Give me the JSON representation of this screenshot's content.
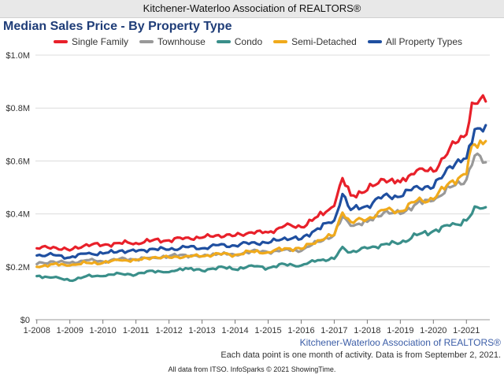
{
  "header": {
    "org_title": "Kitchener-Waterloo Association of REALTORS®"
  },
  "footer": {
    "source_label": "Kitchener-Waterloo Association of REALTORS®",
    "note": "Each data point is one month of activity. Data is from September 2, 2021.",
    "credits": "All data from ITSO. InfoSparks © 2021 ShowingTime."
  },
  "chart_data": {
    "type": "line",
    "title": "Median Sales Price - By Property Type",
    "xlabel": "",
    "ylabel": "",
    "ylim": [
      0,
      1000000
    ],
    "yticks": [
      0,
      200000,
      400000,
      600000,
      800000,
      1000000
    ],
    "ytick_labels": [
      "$0",
      "$0.2M",
      "$0.4M",
      "$0.6M",
      "$0.8M",
      "$1.0M"
    ],
    "xlim": [
      "2008-01",
      "2021-08"
    ],
    "xtick_labels": [
      "1-2008",
      "1-2009",
      "1-2010",
      "1-2011",
      "1-2012",
      "1-2013",
      "1-2014",
      "1-2015",
      "1-2016",
      "1-2017",
      "1-2018",
      "1-2019",
      "1-2020",
      "1-2021"
    ],
    "grid": true,
    "legend_position": "top",
    "series": [
      {
        "name": "Single Family",
        "color": "#e8202a",
        "points": [
          [
            "2008-01",
            270000
          ],
          [
            "2008-07",
            275000
          ],
          [
            "2009-01",
            262000
          ],
          [
            "2009-07",
            285000
          ],
          [
            "2010-01",
            282000
          ],
          [
            "2010-07",
            290000
          ],
          [
            "2011-01",
            290000
          ],
          [
            "2011-07",
            300000
          ],
          [
            "2012-01",
            300000
          ],
          [
            "2012-07",
            310000
          ],
          [
            "2013-01",
            310000
          ],
          [
            "2013-07",
            320000
          ],
          [
            "2014-01",
            318000
          ],
          [
            "2014-07",
            330000
          ],
          [
            "2015-01",
            330000
          ],
          [
            "2015-07",
            355000
          ],
          [
            "2016-01",
            350000
          ],
          [
            "2016-07",
            390000
          ],
          [
            "2017-01",
            430000
          ],
          [
            "2017-04",
            535000
          ],
          [
            "2017-07",
            470000
          ],
          [
            "2018-01",
            490000
          ],
          [
            "2018-07",
            530000
          ],
          [
            "2019-01",
            520000
          ],
          [
            "2019-07",
            565000
          ],
          [
            "2020-01",
            560000
          ],
          [
            "2020-07",
            650000
          ],
          [
            "2021-01",
            700000
          ],
          [
            "2021-03",
            820000
          ],
          [
            "2021-08",
            825000
          ]
        ]
      },
      {
        "name": "Townhouse",
        "color": "#999999",
        "points": [
          [
            "2008-01",
            210000
          ],
          [
            "2008-07",
            220000
          ],
          [
            "2009-01",
            215000
          ],
          [
            "2009-07",
            225000
          ],
          [
            "2010-01",
            220000
          ],
          [
            "2010-07",
            230000
          ],
          [
            "2011-01",
            228000
          ],
          [
            "2011-07",
            235000
          ],
          [
            "2012-01",
            240000
          ],
          [
            "2012-07",
            245000
          ],
          [
            "2013-01",
            240000
          ],
          [
            "2013-07",
            250000
          ],
          [
            "2014-01",
            245000
          ],
          [
            "2014-07",
            260000
          ],
          [
            "2015-01",
            255000
          ],
          [
            "2015-07",
            265000
          ],
          [
            "2016-01",
            260000
          ],
          [
            "2016-07",
            295000
          ],
          [
            "2017-01",
            320000
          ],
          [
            "2017-04",
            390000
          ],
          [
            "2017-07",
            355000
          ],
          [
            "2018-01",
            370000
          ],
          [
            "2018-07",
            405000
          ],
          [
            "2019-01",
            400000
          ],
          [
            "2019-07",
            440000
          ],
          [
            "2020-01",
            450000
          ],
          [
            "2020-07",
            500000
          ],
          [
            "2021-01",
            530000
          ],
          [
            "2021-04",
            620000
          ],
          [
            "2021-08",
            595000
          ]
        ]
      },
      {
        "name": "Condo",
        "color": "#3a8f8a",
        "points": [
          [
            "2008-01",
            165000
          ],
          [
            "2008-07",
            160000
          ],
          [
            "2009-01",
            148000
          ],
          [
            "2009-07",
            165000
          ],
          [
            "2010-01",
            165000
          ],
          [
            "2010-07",
            175000
          ],
          [
            "2011-01",
            170000
          ],
          [
            "2011-07",
            185000
          ],
          [
            "2012-01",
            180000
          ],
          [
            "2012-07",
            195000
          ],
          [
            "2013-01",
            185000
          ],
          [
            "2013-07",
            200000
          ],
          [
            "2014-01",
            190000
          ],
          [
            "2014-07",
            205000
          ],
          [
            "2015-01",
            195000
          ],
          [
            "2015-07",
            210000
          ],
          [
            "2016-01",
            205000
          ],
          [
            "2016-07",
            225000
          ],
          [
            "2017-01",
            230000
          ],
          [
            "2017-04",
            275000
          ],
          [
            "2017-07",
            255000
          ],
          [
            "2018-01",
            270000
          ],
          [
            "2018-07",
            285000
          ],
          [
            "2019-01",
            290000
          ],
          [
            "2019-07",
            320000
          ],
          [
            "2020-01",
            335000
          ],
          [
            "2020-07",
            355000
          ],
          [
            "2021-01",
            375000
          ],
          [
            "2021-05",
            425000
          ],
          [
            "2021-08",
            425000
          ]
        ]
      },
      {
        "name": "Semi-Detached",
        "color": "#f0aa1c",
        "points": [
          [
            "2008-01",
            200000
          ],
          [
            "2008-07",
            210000
          ],
          [
            "2009-01",
            205000
          ],
          [
            "2009-07",
            215000
          ],
          [
            "2010-01",
            215000
          ],
          [
            "2010-07",
            225000
          ],
          [
            "2011-01",
            225000
          ],
          [
            "2011-07",
            235000
          ],
          [
            "2012-01",
            235000
          ],
          [
            "2012-07",
            240000
          ],
          [
            "2013-01",
            240000
          ],
          [
            "2013-07",
            250000
          ],
          [
            "2014-01",
            245000
          ],
          [
            "2014-07",
            258000
          ],
          [
            "2015-01",
            255000
          ],
          [
            "2015-07",
            270000
          ],
          [
            "2016-01",
            268000
          ],
          [
            "2016-07",
            300000
          ],
          [
            "2017-01",
            320000
          ],
          [
            "2017-04",
            405000
          ],
          [
            "2017-07",
            370000
          ],
          [
            "2018-01",
            380000
          ],
          [
            "2018-07",
            415000
          ],
          [
            "2019-01",
            410000
          ],
          [
            "2019-07",
            450000
          ],
          [
            "2020-01",
            455000
          ],
          [
            "2020-07",
            520000
          ],
          [
            "2021-01",
            550000
          ],
          [
            "2021-03",
            660000
          ],
          [
            "2021-08",
            675000
          ]
        ]
      },
      {
        "name": "All Property Types",
        "color": "#1f4fa0",
        "points": [
          [
            "2008-01",
            243000
          ],
          [
            "2008-07",
            245000
          ],
          [
            "2009-01",
            235000
          ],
          [
            "2009-07",
            250000
          ],
          [
            "2010-01",
            250000
          ],
          [
            "2010-07",
            260000
          ],
          [
            "2011-01",
            258000
          ],
          [
            "2011-07",
            268000
          ],
          [
            "2012-01",
            265000
          ],
          [
            "2012-07",
            275000
          ],
          [
            "2013-01",
            270000
          ],
          [
            "2013-07",
            282000
          ],
          [
            "2014-01",
            280000
          ],
          [
            "2014-07",
            292000
          ],
          [
            "2015-01",
            290000
          ],
          [
            "2015-07",
            310000
          ],
          [
            "2016-01",
            305000
          ],
          [
            "2016-07",
            345000
          ],
          [
            "2017-01",
            375000
          ],
          [
            "2017-04",
            475000
          ],
          [
            "2017-07",
            415000
          ],
          [
            "2018-01",
            430000
          ],
          [
            "2018-07",
            470000
          ],
          [
            "2019-01",
            465000
          ],
          [
            "2019-07",
            505000
          ],
          [
            "2020-01",
            500000
          ],
          [
            "2020-07",
            580000
          ],
          [
            "2021-01",
            610000
          ],
          [
            "2021-04",
            720000
          ],
          [
            "2021-08",
            735000
          ]
        ]
      }
    ]
  }
}
